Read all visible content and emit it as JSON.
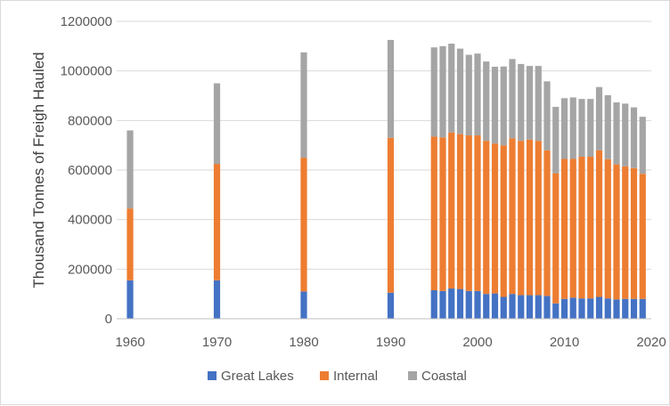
{
  "chart_data": {
    "type": "bar",
    "stacked": true,
    "title": "",
    "xlabel": "",
    "ylabel": "Thousand Tonnes of Freigh Hauled",
    "ylim": [
      0,
      1200000
    ],
    "yticks": [
      "0",
      "200000",
      "400000",
      "600000",
      "800000",
      "1000000",
      "1200000"
    ],
    "xlim": [
      1960,
      2020
    ],
    "xticks": [
      "1960",
      "1970",
      "1980",
      "1990",
      "2000",
      "2010",
      "2020"
    ],
    "grid": true,
    "legend_position": "bottom",
    "x": [
      1960,
      1970,
      1980,
      1990,
      1995,
      1996,
      1997,
      1998,
      1999,
      2000,
      2001,
      2002,
      2003,
      2004,
      2005,
      2006,
      2007,
      2008,
      2009,
      2010,
      2011,
      2012,
      2013,
      2014,
      2015,
      2016,
      2017,
      2018,
      2019
    ],
    "series": [
      {
        "name": "Great Lakes",
        "color": "#4472c4",
        "values": [
          155000,
          155000,
          110000,
          105000,
          115000,
          112000,
          122000,
          120000,
          112000,
          112000,
          100000,
          102000,
          88000,
          100000,
          95000,
          95000,
          95000,
          92000,
          62000,
          80000,
          85000,
          82000,
          82000,
          88000,
          82000,
          78000,
          80000,
          80000,
          80000
        ]
      },
      {
        "name": "Internal",
        "color": "#ed7d31",
        "values": [
          290000,
          470000,
          540000,
          625000,
          620000,
          620000,
          630000,
          625000,
          628000,
          628000,
          618000,
          605000,
          612000,
          628000,
          623000,
          628000,
          623000,
          588000,
          525000,
          565000,
          560000,
          572000,
          572000,
          592000,
          562000,
          545000,
          535000,
          528000,
          505000
        ]
      },
      {
        "name": "Coastal",
        "color": "#a5a5a5",
        "values": [
          315000,
          325000,
          425000,
          395000,
          360000,
          368000,
          358000,
          345000,
          325000,
          330000,
          320000,
          310000,
          318000,
          320000,
          310000,
          297000,
          302000,
          278000,
          268000,
          245000,
          248000,
          233000,
          233000,
          255000,
          258000,
          250000,
          253000,
          245000,
          230000
        ]
      }
    ]
  }
}
